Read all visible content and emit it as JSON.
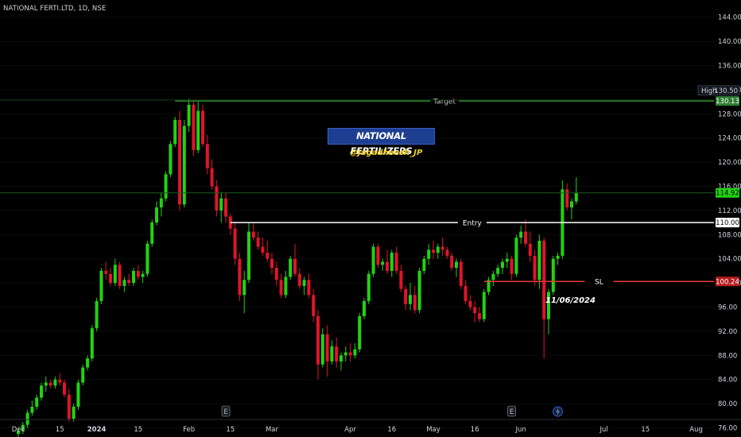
{
  "symbol_header": "NATIONAL FERTI.LTD, 1D, NSE",
  "annotations": {
    "title": "NATIONAL FERTILIZERS",
    "handle": "@Jagadheesh_JP",
    "date_note": "11/06/2024"
  },
  "colors": {
    "up": "#22d311",
    "down": "#e0152a",
    "target_line": "#2a8c2a",
    "target_badge": "#2e7d32",
    "entry_line": "#ffffff",
    "sl_line": "#e53935",
    "sl_badge": "#b71c1c",
    "title_bg": "#1e3f91",
    "handle": "#f5d020"
  },
  "chart_data": {
    "type": "candlestick",
    "y_axis": {
      "ticks": [
        "76.00",
        "80.00",
        "84.00",
        "88.00",
        "92.00",
        "96.00",
        "100.00",
        "104.00",
        "108.00",
        "112.00",
        "116.00",
        "120.00",
        "124.00",
        "128.00",
        "132.00",
        "136.00",
        "140.00",
        "144.00"
      ],
      "range": [
        75,
        145
      ]
    },
    "x_axis": {
      "ticks": [
        {
          "label": "Dec",
          "bold": false,
          "idx": 0
        },
        {
          "label": "15",
          "bold": false,
          "idx": 9
        },
        {
          "label": "2024",
          "bold": true,
          "idx": 17
        },
        {
          "label": "15",
          "bold": false,
          "idx": 26
        },
        {
          "label": "Feb",
          "bold": false,
          "idx": 37
        },
        {
          "label": "15",
          "bold": false,
          "idx": 46
        },
        {
          "label": "Mar",
          "bold": false,
          "idx": 55
        },
        {
          "label": "Apr",
          "bold": false,
          "idx": 72
        },
        {
          "label": "16",
          "bold": false,
          "idx": 81
        },
        {
          "label": "May",
          "bold": false,
          "idx": 90
        },
        {
          "label": "16",
          "bold": false,
          "idx": 99
        },
        {
          "label": "Jun",
          "bold": false,
          "idx": 109
        },
        {
          "label": "Jul",
          "bold": false,
          "idx": 127
        },
        {
          "label": "15",
          "bold": false,
          "idx": 136
        },
        {
          "label": "Aug",
          "bold": false,
          "idx": 147
        }
      ]
    },
    "levels": [
      {
        "name": "Target",
        "value": 130.13,
        "badge": "130.13",
        "start_idx": 34
      },
      {
        "name": "Entry",
        "value": 110.0,
        "badge": "110.00",
        "start_idx": 46
      },
      {
        "name": "SL",
        "value": 100.24,
        "badge": "100.24",
        "start_idx": 101
      }
    ],
    "high_label": {
      "label": "High",
      "value": "130.50"
    },
    "last_price": "114.92",
    "events": [
      {
        "type": "E",
        "idx": 45
      },
      {
        "type": "E",
        "idx": 107
      },
      {
        "type": "dividend",
        "idx": 117
      }
    ],
    "candles": [
      [
        0,
        75.0,
        76.0,
        74.5,
        75.5
      ],
      [
        1,
        75.5,
        77.0,
        75.0,
        76.5
      ],
      [
        2,
        76.5,
        79.0,
        76.0,
        78.5
      ],
      [
        3,
        78.5,
        80.5,
        78.0,
        79.5
      ],
      [
        4,
        79.5,
        81.5,
        79.0,
        81.0
      ],
      [
        5,
        81.0,
        83.5,
        80.5,
        83.0
      ],
      [
        6,
        83.0,
        84.5,
        82.0,
        83.5
      ],
      [
        7,
        83.5,
        84.0,
        82.5,
        83.0
      ],
      [
        8,
        83.0,
        84.5,
        82.5,
        84.0
      ],
      [
        9,
        84.0,
        85.0,
        83.0,
        83.5
      ],
      [
        10,
        83.5,
        84.0,
        81.0,
        81.5
      ],
      [
        11,
        81.5,
        82.5,
        77.0,
        77.5
      ],
      [
        12,
        77.5,
        80.0,
        77.0,
        79.5
      ],
      [
        13,
        79.5,
        84.0,
        79.0,
        83.5
      ],
      [
        14,
        83.5,
        86.5,
        83.0,
        86.0
      ],
      [
        15,
        86.0,
        88.0,
        85.5,
        87.5
      ],
      [
        16,
        87.5,
        93.0,
        87.0,
        92.5
      ],
      [
        17,
        92.5,
        97.5,
        92.0,
        97.0
      ],
      [
        18,
        97.0,
        102.5,
        96.5,
        102.0
      ],
      [
        19,
        102.0,
        103.5,
        100.5,
        101.5
      ],
      [
        20,
        101.5,
        102.5,
        99.5,
        100.0
      ],
      [
        21,
        100.0,
        104.0,
        99.5,
        103.0
      ],
      [
        22,
        103.0,
        103.5,
        99.0,
        99.5
      ],
      [
        23,
        99.5,
        101.0,
        98.5,
        100.5
      ],
      [
        24,
        100.5,
        101.5,
        99.5,
        100.0
      ],
      [
        25,
        100.0,
        102.5,
        99.5,
        102.0
      ],
      [
        26,
        102.0,
        103.0,
        100.5,
        101.0
      ],
      [
        27,
        101.0,
        102.0,
        100.0,
        101.5
      ],
      [
        28,
        101.5,
        107.0,
        101.0,
        106.5
      ],
      [
        29,
        106.5,
        110.5,
        106.0,
        110.0
      ],
      [
        30,
        110.0,
        113.5,
        109.5,
        112.5
      ],
      [
        31,
        112.5,
        115.0,
        111.0,
        114.0
      ],
      [
        32,
        114.0,
        118.5,
        113.5,
        118.0
      ],
      [
        33,
        118.0,
        123.5,
        117.5,
        123.0
      ],
      [
        34,
        123.0,
        127.5,
        122.5,
        127.0
      ],
      [
        35,
        127.0,
        128.5,
        112.0,
        113.0
      ],
      [
        36,
        113.0,
        127.0,
        112.5,
        126.0
      ],
      [
        37,
        126.0,
        130.5,
        125.0,
        129.5
      ],
      [
        38,
        129.5,
        130.0,
        121.0,
        122.0
      ],
      [
        39,
        122.0,
        130.0,
        121.5,
        128.5
      ],
      [
        40,
        128.5,
        129.5,
        122.5,
        123.0
      ],
      [
        41,
        123.0,
        124.5,
        118.0,
        119.0
      ],
      [
        42,
        119.0,
        120.5,
        115.5,
        116.0
      ],
      [
        43,
        116.0,
        117.0,
        111.0,
        112.0
      ],
      [
        44,
        112.0,
        115.0,
        110.0,
        114.0
      ],
      [
        45,
        114.0,
        115.0,
        110.0,
        111.0
      ],
      [
        46,
        111.0,
        111.5,
        108.0,
        109.0
      ],
      [
        47,
        109.0,
        110.0,
        103.0,
        104.0
      ],
      [
        48,
        104.0,
        105.0,
        97.0,
        98.0
      ],
      [
        49,
        98.0,
        102.0,
        95.0,
        100.5
      ],
      [
        50,
        100.5,
        110.0,
        100.0,
        108.5
      ],
      [
        51,
        108.5,
        110.0,
        107.0,
        107.5
      ],
      [
        52,
        107.5,
        108.5,
        105.5,
        106.0
      ],
      [
        53,
        106.0,
        107.5,
        104.5,
        105.0
      ],
      [
        54,
        105.0,
        107.0,
        103.5,
        104.0
      ],
      [
        55,
        104.0,
        105.0,
        101.5,
        102.5
      ],
      [
        56,
        102.5,
        103.5,
        99.5,
        100.5
      ],
      [
        57,
        100.5,
        101.5,
        97.5,
        98.0
      ],
      [
        58,
        98.0,
        102.0,
        97.5,
        101.0
      ],
      [
        59,
        101.0,
        104.5,
        100.5,
        104.0
      ],
      [
        60,
        104.0,
        106.5,
        101.0,
        101.5
      ],
      [
        61,
        101.5,
        102.5,
        99.0,
        99.5
      ],
      [
        62,
        99.5,
        101.0,
        98.0,
        100.5
      ],
      [
        63,
        100.5,
        101.5,
        97.5,
        98.0
      ],
      [
        64,
        98.0,
        99.0,
        93.5,
        94.5
      ],
      [
        65,
        94.5,
        95.5,
        84.0,
        86.5
      ],
      [
        66,
        86.5,
        92.5,
        86.0,
        91.5
      ],
      [
        67,
        91.5,
        93.0,
        84.5,
        87.0
      ],
      [
        68,
        87.0,
        90.5,
        86.5,
        89.5
      ],
      [
        69,
        89.5,
        91.0,
        86.0,
        87.0
      ],
      [
        70,
        87.0,
        88.5,
        85.5,
        88.0
      ],
      [
        71,
        88.0,
        89.5,
        87.0,
        88.5
      ],
      [
        72,
        88.5,
        90.0,
        87.0,
        88.0
      ],
      [
        73,
        88.0,
        90.0,
        87.5,
        89.0
      ],
      [
        74,
        89.0,
        95.0,
        88.5,
        94.5
      ],
      [
        75,
        94.5,
        97.5,
        94.0,
        97.0
      ],
      [
        76,
        97.0,
        102.0,
        96.5,
        101.5
      ],
      [
        77,
        101.5,
        106.5,
        101.0,
        106.0
      ],
      [
        78,
        106.0,
        106.5,
        102.5,
        103.0
      ],
      [
        79,
        103.0,
        104.0,
        102.0,
        103.5
      ],
      [
        80,
        103.5,
        105.5,
        101.5,
        102.0
      ],
      [
        81,
        102.0,
        105.5,
        101.0,
        105.0
      ],
      [
        82,
        105.0,
        106.0,
        101.5,
        102.0
      ],
      [
        83,
        102.0,
        103.0,
        98.5,
        99.0
      ],
      [
        84,
        99.0,
        99.5,
        95.5,
        96.5
      ],
      [
        85,
        96.5,
        100.0,
        95.5,
        98.0
      ],
      [
        86,
        98.0,
        99.5,
        95.0,
        95.5
      ],
      [
        87,
        95.5,
        102.5,
        95.0,
        102.0
      ],
      [
        88,
        102.0,
        104.5,
        101.5,
        104.0
      ],
      [
        89,
        104.0,
        106.5,
        103.0,
        105.5
      ],
      [
        90,
        105.5,
        107.0,
        104.0,
        105.0
      ],
      [
        91,
        105.0,
        106.5,
        104.0,
        106.0
      ],
      [
        92,
        106.0,
        107.5,
        104.5,
        105.5
      ],
      [
        93,
        105.5,
        106.0,
        104.0,
        104.5
      ],
      [
        94,
        104.5,
        105.0,
        102.0,
        102.5
      ],
      [
        95,
        102.5,
        104.0,
        101.0,
        103.5
      ],
      [
        96,
        103.5,
        104.0,
        99.0,
        99.5
      ],
      [
        97,
        99.5,
        100.5,
        96.5,
        97.0
      ],
      [
        98,
        97.0,
        98.0,
        95.5,
        96.0
      ],
      [
        99,
        96.0,
        97.0,
        93.5,
        95.0
      ],
      [
        100,
        95.0,
        96.0,
        93.5,
        94.0
      ],
      [
        101,
        94.0,
        99.0,
        93.5,
        98.5
      ],
      [
        102,
        98.5,
        101.0,
        98.0,
        100.5
      ],
      [
        103,
        100.5,
        102.0,
        99.5,
        101.5
      ],
      [
        104,
        101.5,
        103.0,
        101.0,
        102.5
      ],
      [
        105,
        102.5,
        104.0,
        101.5,
        103.5
      ],
      [
        106,
        103.5,
        105.0,
        102.5,
        104.0
      ],
      [
        107,
        104.0,
        104.5,
        100.5,
        101.5
      ],
      [
        108,
        101.5,
        108.0,
        101.0,
        107.5
      ],
      [
        109,
        107.5,
        109.5,
        106.5,
        108.5
      ],
      [
        110,
        108.5,
        110.5,
        106.0,
        106.5
      ],
      [
        111,
        106.5,
        108.5,
        103.5,
        104.5
      ],
      [
        112,
        104.5,
        105.5,
        99.5,
        100.5
      ],
      [
        113,
        100.5,
        108.0,
        99.0,
        107.0
      ],
      [
        114,
        107.0,
        107.5,
        87.5,
        94.0
      ],
      [
        115,
        94.0,
        99.0,
        91.5,
        98.5
      ],
      [
        116,
        98.5,
        104.5,
        98.0,
        104.0
      ],
      [
        117,
        104.0,
        105.0,
        103.0,
        104.5
      ],
      [
        118,
        104.5,
        117.0,
        104.0,
        115.5
      ],
      [
        119,
        115.5,
        116.5,
        112.0,
        112.5
      ],
      [
        120,
        112.5,
        114.0,
        110.5,
        113.5
      ],
      [
        121,
        113.5,
        117.5,
        113.0,
        114.92
      ]
    ],
    "ylabel": "",
    "xlabel": ""
  }
}
